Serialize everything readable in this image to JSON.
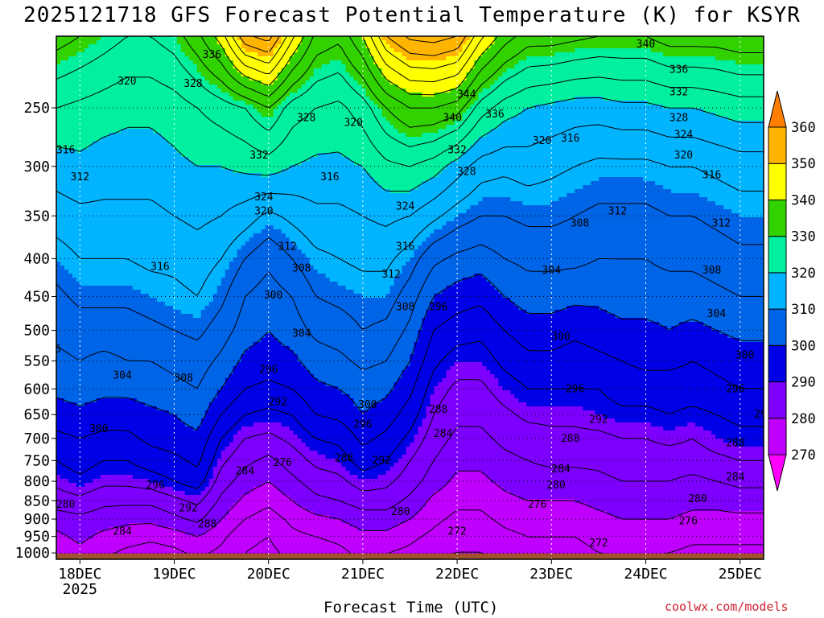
{
  "title": "2025121718 GFS Forecast Potential Temperature (K) for KSYR",
  "xlabel": "Forecast Time (UTC)",
  "credit": "coolwx.com/models",
  "chart_data": {
    "type": "heatmap",
    "title": "2025121718 GFS Forecast Potential Temperature (K) for KSYR",
    "xlabel": "Forecast Time (UTC)",
    "ylabel": "",
    "x_ticks": [
      {
        "label": "18DEC",
        "sub": "2025",
        "pos": 0.25
      },
      {
        "label": "19DEC",
        "sub": "",
        "pos": 1.25
      },
      {
        "label": "20DEC",
        "sub": "",
        "pos": 2.25
      },
      {
        "label": "21DEC",
        "sub": "",
        "pos": 3.25
      },
      {
        "label": "22DEC",
        "sub": "",
        "pos": 4.25
      },
      {
        "label": "23DEC",
        "sub": "",
        "pos": 5.25
      },
      {
        "label": "24DEC",
        "sub": "",
        "pos": 6.25
      },
      {
        "label": "25DEC",
        "sub": "",
        "pos": 7.25
      }
    ],
    "x_range": [
      0,
      7.5
    ],
    "y_ticks": [
      250,
      300,
      350,
      400,
      450,
      500,
      550,
      600,
      650,
      700,
      750,
      800,
      850,
      900,
      950,
      1000
    ],
    "y_range": [
      200,
      1020
    ],
    "y_scale": "log-pressure",
    "grid": true,
    "colorbar": {
      "levels": [
        270,
        280,
        290,
        300,
        310,
        320,
        330,
        340,
        350,
        360
      ],
      "colors": [
        "#ff00ff",
        "#c000ff",
        "#7d00ff",
        "#0000e6",
        "#0064e6",
        "#00b4ff",
        "#00f0a0",
        "#32d200",
        "#ffff00",
        "#ffb400",
        "#ff7d00"
      ],
      "placement": "right"
    },
    "columns_x": [
      0,
      0.25,
      0.5,
      0.75,
      1.0,
      1.25,
      1.5,
      1.75,
      2.0,
      2.25,
      2.5,
      2.75,
      3.0,
      3.25,
      3.5,
      3.75,
      4.0,
      4.25,
      4.5,
      4.75,
      5.0,
      5.25,
      5.5,
      5.75,
      6.0,
      6.25,
      6.5,
      6.75,
      7.0,
      7.25,
      7.5
    ],
    "profile_levels": [
      1020,
      1000,
      950,
      900,
      850,
      800,
      750,
      700,
      650,
      600,
      550,
      500,
      450,
      400,
      350,
      300,
      250,
      200
    ],
    "profiles": [
      [
        276,
        277,
        279,
        282,
        286,
        289,
        292,
        295,
        298,
        301,
        303,
        305,
        307,
        310,
        314,
        318,
        324,
        334
      ],
      [
        278,
        279,
        281,
        283,
        287,
        291,
        294,
        296,
        299,
        302,
        304,
        306,
        309,
        312,
        315,
        319,
        323,
        332
      ],
      [
        276,
        277,
        279,
        282,
        285,
        289,
        292,
        295,
        298,
        301,
        303,
        306,
        309,
        312,
        315,
        318,
        322,
        330
      ],
      [
        274,
        275,
        278,
        281,
        285,
        289,
        292,
        295,
        298,
        301,
        304,
        306,
        309,
        312,
        315,
        318,
        321,
        328
      ],
      [
        273,
        274,
        277,
        281,
        285,
        290,
        294,
        297,
        299,
        302,
        304,
        307,
        310,
        313,
        315,
        318,
        321,
        328
      ],
      [
        274,
        275,
        278,
        283,
        287,
        292,
        295,
        298,
        300,
        303,
        305,
        308,
        311,
        313,
        316,
        319,
        322,
        330
      ],
      [
        276,
        277,
        280,
        285,
        289,
        294,
        297,
        299,
        302,
        304,
        306,
        309,
        312,
        314,
        317,
        320,
        324,
        335
      ],
      [
        274,
        275,
        277,
        280,
        283,
        286,
        289,
        292,
        296,
        300,
        303,
        306,
        309,
        312,
        316,
        320,
        326,
        342
      ],
      [
        272,
        272,
        273,
        276,
        279,
        282,
        285,
        288,
        292,
        296,
        299,
        302,
        304,
        308,
        314,
        321,
        328,
        355
      ],
      [
        271,
        271,
        272,
        274,
        277,
        280,
        283,
        287,
        291,
        295,
        298,
        300,
        302,
        305,
        311,
        322,
        332,
        358
      ],
      [
        273,
        273,
        275,
        277,
        280,
        283,
        286,
        289,
        292,
        296,
        299,
        302,
        304,
        308,
        313,
        320,
        326,
        345
      ],
      [
        274,
        274,
        276,
        279,
        283,
        286,
        289,
        292,
        296,
        299,
        302,
        305,
        308,
        311,
        315,
        319,
        324,
        335
      ],
      [
        275,
        275,
        277,
        280,
        284,
        287,
        290,
        293,
        297,
        300,
        303,
        306,
        309,
        312,
        315,
        319,
        323,
        333
      ],
      [
        277,
        277,
        279,
        282,
        286,
        290,
        294,
        297,
        300,
        302,
        305,
        308,
        310,
        313,
        316,
        320,
        326,
        340
      ],
      [
        276,
        276,
        279,
        282,
        286,
        289,
        292,
        295,
        298,
        301,
        304,
        307,
        310,
        313,
        317,
        323,
        332,
        352
      ],
      [
        274,
        275,
        277,
        280,
        283,
        286,
        288,
        291,
        294,
        297,
        300,
        303,
        306,
        310,
        316,
        324,
        336,
        357
      ],
      [
        272,
        273,
        275,
        277,
        279,
        282,
        284,
        286,
        288,
        290,
        293,
        296,
        300,
        305,
        313,
        322,
        336,
        358
      ],
      [
        271,
        272,
        273,
        275,
        277,
        279,
        281,
        283,
        285,
        287,
        290,
        294,
        298,
        303,
        310,
        318,
        334,
        356
      ],
      [
        271,
        272,
        273,
        275,
        277,
        279,
        281,
        283,
        285,
        287,
        290,
        293,
        297,
        302,
        308,
        314,
        326,
        345
      ],
      [
        273,
        274,
        275,
        277,
        279,
        281,
        283,
        285,
        287,
        290,
        293,
        296,
        300,
        304,
        308,
        313,
        322,
        338
      ],
      [
        274,
        275,
        276,
        278,
        280,
        282,
        284,
        286,
        289,
        292,
        295,
        298,
        302,
        305,
        309,
        314,
        320,
        334
      ],
      [
        274,
        275,
        276,
        278,
        280,
        282,
        285,
        287,
        289,
        292,
        295,
        298,
        302,
        305,
        309,
        313,
        319,
        334
      ],
      [
        274,
        275,
        276,
        278,
        280,
        282,
        285,
        287,
        289,
        292,
        294,
        297,
        301,
        305,
        308,
        312,
        318,
        333
      ],
      [
        275,
        276,
        277,
        279,
        281,
        283,
        285,
        287,
        290,
        292,
        295,
        298,
        301,
        304,
        307,
        311,
        318,
        332
      ],
      [
        276,
        277,
        278,
        280,
        282,
        284,
        286,
        288,
        291,
        294,
        296,
        299,
        302,
        304,
        307,
        311,
        319,
        332
      ],
      [
        276,
        277,
        278,
        280,
        282,
        284,
        286,
        288,
        291,
        294,
        297,
        299,
        302,
        304,
        307,
        311,
        319,
        332
      ],
      [
        275,
        276,
        278,
        280,
        282,
        284,
        286,
        289,
        292,
        294,
        297,
        300,
        302,
        305,
        308,
        312,
        320,
        334
      ],
      [
        274,
        275,
        277,
        279,
        281,
        283,
        286,
        288,
        291,
        294,
        296,
        299,
        302,
        305,
        308,
        312,
        320,
        334
      ],
      [
        274,
        275,
        277,
        279,
        281,
        284,
        287,
        290,
        292,
        295,
        297,
        300,
        303,
        306,
        309,
        313,
        321,
        334
      ],
      [
        274,
        275,
        277,
        279,
        282,
        285,
        288,
        291,
        293,
        296,
        298,
        301,
        304,
        307,
        310,
        314,
        322,
        335
      ],
      [
        274,
        275,
        277,
        279,
        282,
        285,
        288,
        291,
        293,
        296,
        298,
        301,
        304,
        307,
        310,
        314,
        322,
        335
      ]
    ],
    "contour_labels": [
      {
        "text": "336",
        "x": 1.65,
        "p": 212
      },
      {
        "text": "320",
        "x": 0.75,
        "p": 230
      },
      {
        "text": "328",
        "x": 1.45,
        "p": 232
      },
      {
        "text": "316",
        "x": 0.1,
        "p": 285
      },
      {
        "text": "312",
        "x": 0.25,
        "p": 310
      },
      {
        "text": "316",
        "x": 1.1,
        "p": 410
      },
      {
        "text": "332",
        "x": 2.15,
        "p": 290
      },
      {
        "text": "324",
        "x": 2.2,
        "p": 330
      },
      {
        "text": "320",
        "x": 2.2,
        "p": 345
      },
      {
        "text": "328",
        "x": 2.65,
        "p": 258
      },
      {
        "text": "316",
        "x": 2.9,
        "p": 310
      },
      {
        "text": "320",
        "x": 3.15,
        "p": 262
      },
      {
        "text": "312",
        "x": 2.45,
        "p": 385
      },
      {
        "text": "308",
        "x": 2.6,
        "p": 412
      },
      {
        "text": "300",
        "x": 2.3,
        "p": 448
      },
      {
        "text": "304",
        "x": 2.6,
        "p": 505
      },
      {
        "text": "296",
        "x": 2.25,
        "p": 565
      },
      {
        "text": "292",
        "x": 2.35,
        "p": 625
      },
      {
        "text": "304",
        "x": 0.7,
        "p": 575
      },
      {
        "text": "308",
        "x": 1.35,
        "p": 580
      },
      {
        "text": "300",
        "x": 0.45,
        "p": 680
      },
      {
        "text": "296",
        "x": 1.05,
        "p": 810
      },
      {
        "text": "292",
        "x": 1.4,
        "p": 870
      },
      {
        "text": "288",
        "x": 1.6,
        "p": 915
      },
      {
        "text": "284",
        "x": 0.7,
        "p": 935
      },
      {
        "text": "280",
        "x": 0.1,
        "p": 860
      },
      {
        "text": "288",
        "x": -0.1,
        "p": 752
      },
      {
        "text": "296",
        "x": -0.05,
        "p": 530
      },
      {
        "text": "284",
        "x": 2.0,
        "p": 775
      },
      {
        "text": "276",
        "x": 2.4,
        "p": 755
      },
      {
        "text": "288",
        "x": 3.05,
        "p": 745
      },
      {
        "text": "292",
        "x": 3.45,
        "p": 750
      },
      {
        "text": "296",
        "x": 3.25,
        "p": 670
      },
      {
        "text": "300",
        "x": 3.3,
        "p": 630
      },
      {
        "text": "280",
        "x": 3.65,
        "p": 880
      },
      {
        "text": "316",
        "x": 3.7,
        "p": 385
      },
      {
        "text": "312",
        "x": 3.55,
        "p": 420
      },
      {
        "text": "308",
        "x": 3.7,
        "p": 465
      },
      {
        "text": "324",
        "x": 3.7,
        "p": 340
      },
      {
        "text": "344",
        "x": 4.35,
        "p": 240
      },
      {
        "text": "340",
        "x": 4.2,
        "p": 258
      },
      {
        "text": "336",
        "x": 4.65,
        "p": 255
      },
      {
        "text": "332",
        "x": 4.25,
        "p": 285
      },
      {
        "text": "328",
        "x": 4.35,
        "p": 305
      },
      {
        "text": "296",
        "x": 4.05,
        "p": 465
      },
      {
        "text": "288",
        "x": 4.05,
        "p": 640
      },
      {
        "text": "284",
        "x": 4.1,
        "p": 690
      },
      {
        "text": "272",
        "x": 4.25,
        "p": 935
      },
      {
        "text": "320",
        "x": 5.15,
        "p": 277
      },
      {
        "text": "316",
        "x": 5.45,
        "p": 275
      },
      {
        "text": "308",
        "x": 5.55,
        "p": 358
      },
      {
        "text": "312",
        "x": 5.95,
        "p": 345
      },
      {
        "text": "304",
        "x": 5.25,
        "p": 415
      },
      {
        "text": "300",
        "x": 5.35,
        "p": 510
      },
      {
        "text": "296",
        "x": 5.5,
        "p": 600
      },
      {
        "text": "292",
        "x": 5.75,
        "p": 660
      },
      {
        "text": "288",
        "x": 5.45,
        "p": 700
      },
      {
        "text": "284",
        "x": 5.35,
        "p": 770
      },
      {
        "text": "280",
        "x": 5.3,
        "p": 810
      },
      {
        "text": "276",
        "x": 5.1,
        "p": 860
      },
      {
        "text": "272",
        "x": 5.75,
        "p": 970
      },
      {
        "text": "340",
        "x": 6.25,
        "p": 205
      },
      {
        "text": "336",
        "x": 6.6,
        "p": 222
      },
      {
        "text": "332",
        "x": 6.6,
        "p": 238
      },
      {
        "text": "328",
        "x": 6.6,
        "p": 258
      },
      {
        "text": "324",
        "x": 6.65,
        "p": 272
      },
      {
        "text": "320",
        "x": 6.65,
        "p": 290
      },
      {
        "text": "316",
        "x": 6.95,
        "p": 308
      },
      {
        "text": "312",
        "x": 7.05,
        "p": 358
      },
      {
        "text": "308",
        "x": 6.95,
        "p": 415
      },
      {
        "text": "304",
        "x": 7.0,
        "p": 475
      },
      {
        "text": "300",
        "x": 7.3,
        "p": 540
      },
      {
        "text": "296",
        "x": 7.2,
        "p": 600
      },
      {
        "text": "292",
        "x": 7.5,
        "p": 650
      },
      {
        "text": "288",
        "x": 7.2,
        "p": 710
      },
      {
        "text": "284",
        "x": 7.2,
        "p": 790
      },
      {
        "text": "280",
        "x": 6.8,
        "p": 845
      },
      {
        "text": "276",
        "x": 6.7,
        "p": 905
      }
    ]
  }
}
